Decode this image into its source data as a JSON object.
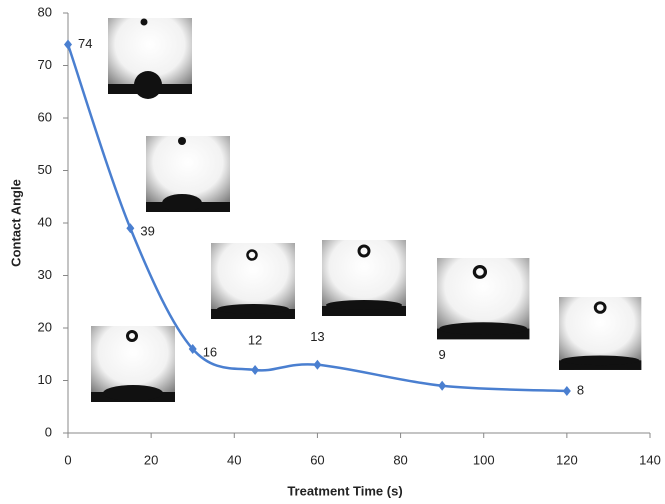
{
  "chart_data": {
    "type": "line",
    "x_label": "Treatment Time (s)",
    "y_label": "Contact Angle",
    "x": [
      0,
      15,
      30,
      45,
      60,
      90,
      120
    ],
    "values": [
      74,
      39,
      16,
      12,
      13,
      9,
      8
    ],
    "color": "#4a7fd0",
    "xlim": [
      0,
      140
    ],
    "xticks": [
      0,
      20,
      40,
      60,
      80,
      100,
      120,
      140
    ],
    "ylim": [
      0,
      80
    ],
    "yticks": [
      0,
      10,
      20,
      30,
      40,
      50,
      60,
      70,
      80
    ],
    "grid": false,
    "smooth": true
  }
}
